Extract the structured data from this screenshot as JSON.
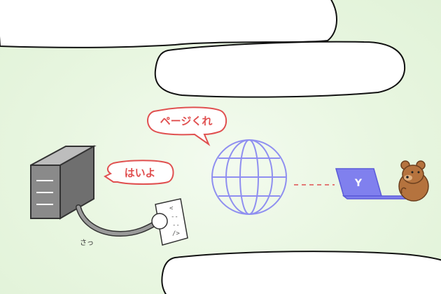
{
  "scene": {
    "request_bubble": {
      "text": "ページくれ"
    },
    "response_bubble": {
      "text": "はいよ"
    },
    "sfx_caption": {
      "text": "さっ"
    },
    "document_lines": [
      "<",
      "--",
      "--",
      "/>"
    ],
    "laptop_logo": {
      "text": "Y"
    }
  },
  "colors": {
    "bubble_text": "#e05050",
    "globe": "#8f8ff0",
    "laptop": "#8080ee",
    "server": "#8a8a8a",
    "connection_dash": "#e05050",
    "bear": "#b5733e"
  }
}
